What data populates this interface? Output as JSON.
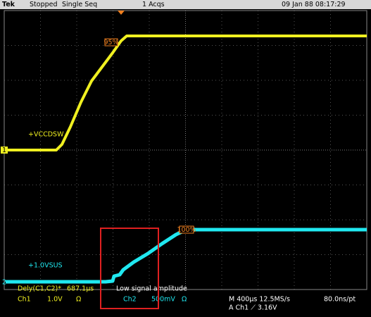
{
  "status_bar": {
    "brand": "Tek",
    "state": "Stopped",
    "mode": "Single Seq",
    "acquisitions": "1 Acqs",
    "timestamp": "09 Jan 88 08:17:29"
  },
  "traces": [
    {
      "label": "+VCCDSW",
      "marker": "1",
      "level_label": "95%"
    },
    {
      "label": "+1.0VSUS",
      "marker": "2",
      "level_label": "100%"
    }
  ],
  "measurement": {
    "name": "Dely(C1,C2)*",
    "value": "687.1µs"
  },
  "annotation": "Low signal amplitude",
  "readout": {
    "ch1": {
      "name": "Ch1",
      "scale": "1.0V",
      "coupling": "Ω"
    },
    "ch2": {
      "name": "Ch2",
      "scale": "500mV",
      "coupling": "Ω"
    },
    "timebase": "M 400µs 12.5MS/s",
    "resolution": "80.0ns/pt",
    "trigger": "A Ch1 ⟋ 3.16V"
  }
}
